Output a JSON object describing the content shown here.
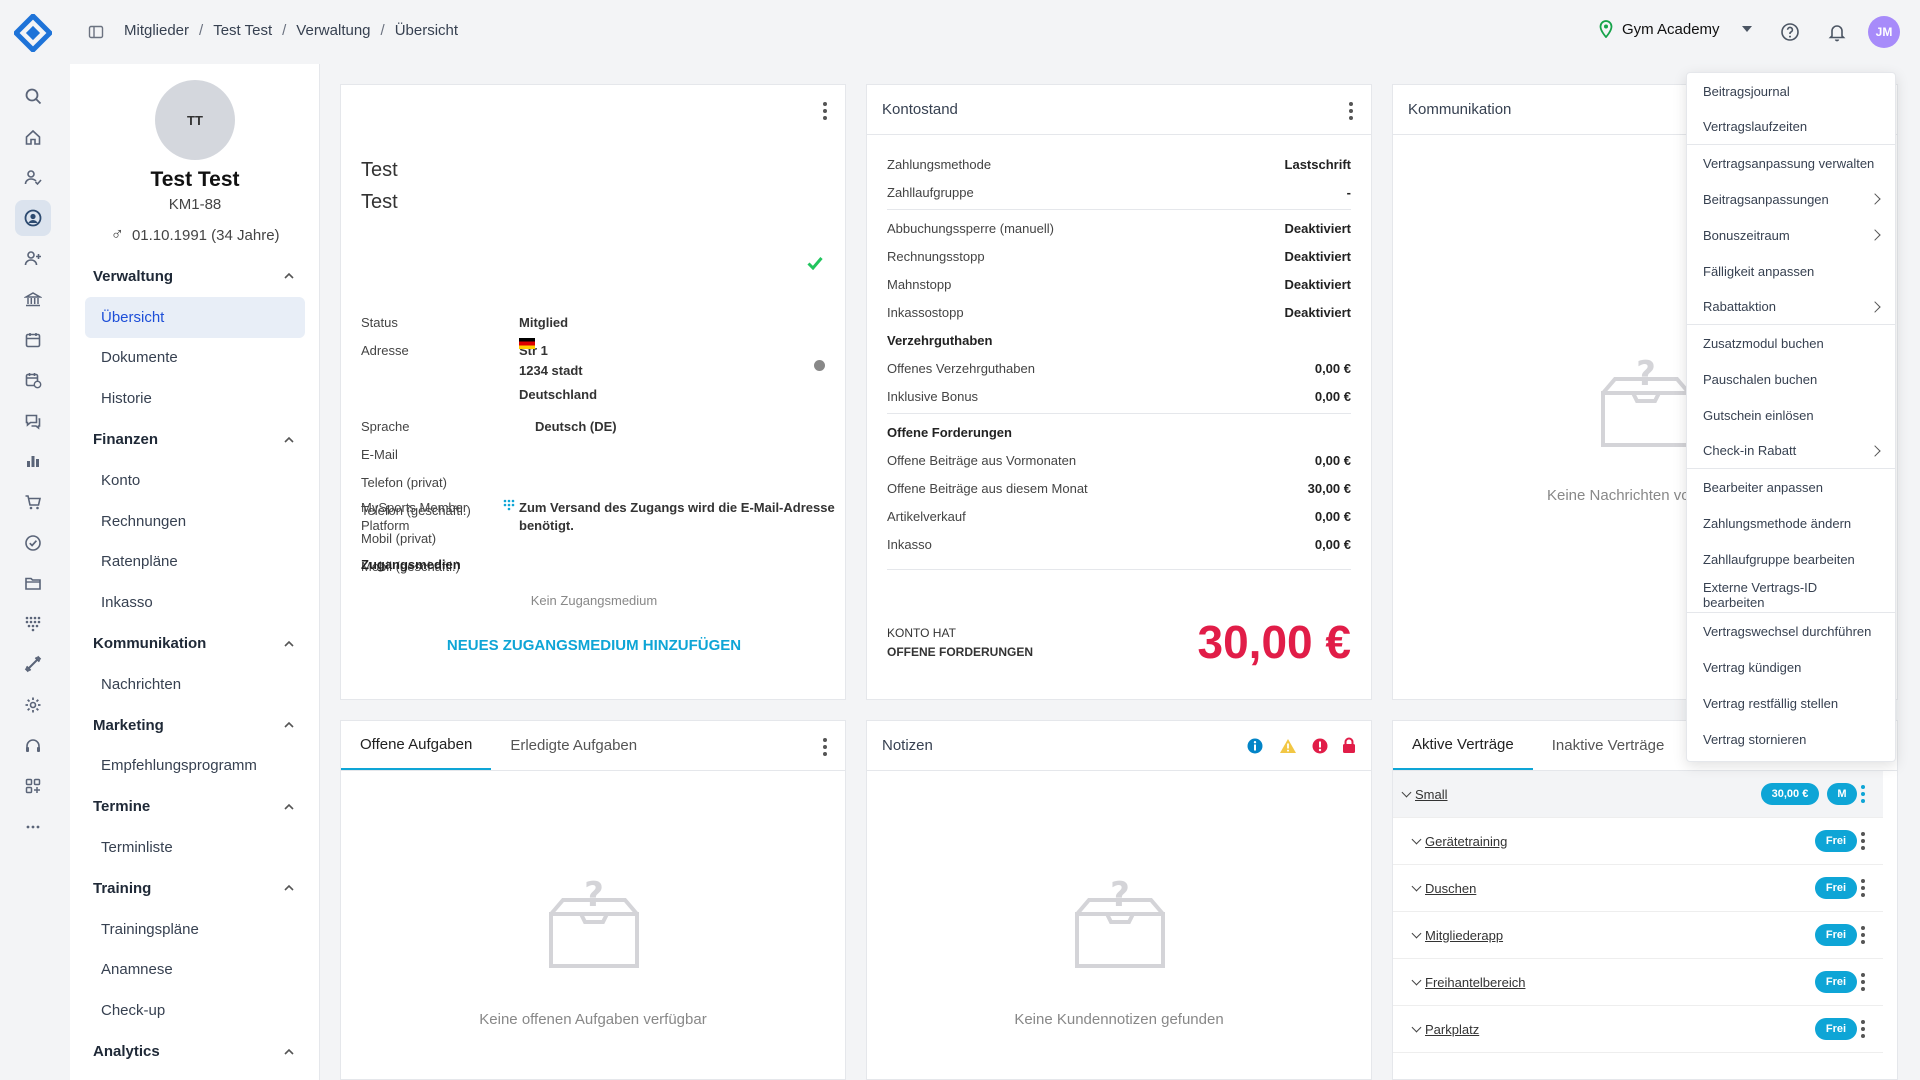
{
  "topbar": {
    "crumbs": [
      "Mitglieder",
      "Test Test",
      "Verwaltung",
      "Übersicht"
    ],
    "gym": "Gym Academy",
    "avatar": "JM"
  },
  "rail": [
    "search-icon",
    "home-icon",
    "user-check-icon",
    "user-circle-icon",
    "user-plus-icon",
    "bank-icon",
    "calendar-icon",
    "calendar-clock-icon",
    "chat-icon",
    "bar-chart-icon",
    "cart-icon",
    "check-circle-icon",
    "folder-icon",
    "dots-grid-icon",
    "dumbbell-icon",
    "gear-icon",
    "headset-icon",
    "apps-icon",
    "more-icon"
  ],
  "profile": {
    "initials": "TT",
    "name": "Test Test",
    "id": "KM1-88",
    "dob": "01.10.1991 (34 Jahre)",
    "gender_symbol": "♂"
  },
  "nav": [
    {
      "section": "Verwaltung",
      "items": [
        "Übersicht",
        "Dokumente",
        "Historie"
      ]
    },
    {
      "section": "Finanzen",
      "items": [
        "Konto",
        "Rechnungen",
        "Ratenpläne",
        "Inkasso"
      ]
    },
    {
      "section": "Kommunikation",
      "items": [
        "Nachrichten"
      ]
    },
    {
      "section": "Marketing",
      "items": [
        "Empfehlungsprogramm"
      ]
    },
    {
      "section": "Termine",
      "items": [
        "Terminliste"
      ]
    },
    {
      "section": "Training",
      "items": [
        "Trainingspläne",
        "Anamnese",
        "Check-up"
      ]
    },
    {
      "section": "Analytics",
      "items": []
    }
  ],
  "member": {
    "first": "Test",
    "last": "Test",
    "rows": [
      {
        "label": "Status",
        "value": "Mitglied"
      },
      {
        "label": "Adresse",
        "value": "Str 1"
      },
      {
        "label": "",
        "value": "1234 stadt"
      },
      {
        "label": "",
        "value": "Deutschland"
      },
      {
        "label": "Sprache",
        "value": "Deutsch (DE)"
      },
      {
        "label": "E-Mail",
        "value": ""
      },
      {
        "label": "Telefon (privat)",
        "value": ""
      },
      {
        "label": "Telefon (geschäftl.)",
        "value": ""
      },
      {
        "label": "Mobil (privat)",
        "value": ""
      },
      {
        "label": "Mobil (geschäftl.)",
        "value": ""
      }
    ],
    "platform_label_1": "MySports Member",
    "platform_label_2": "Platform",
    "platform_value_1": "Zum Versand des Zugangs wird die E-Mail-Adresse",
    "platform_value_2": "benötigt.",
    "media_title": "Zugangsmedien",
    "media_empty": "Kein Zugangsmedium",
    "media_add": "NEUES ZUGANGSMEDIUM HINZUFÜGEN"
  },
  "account": {
    "title": "Kontostand",
    "rows": [
      {
        "k": "Zahlungsmethode",
        "v": "Lastschrift"
      },
      {
        "k": "Zahllaufgruppe",
        "v": "-"
      },
      {
        "k": "Abbuchungssperre (manuell)",
        "v": "Deaktiviert"
      },
      {
        "k": "Rechnungsstopp",
        "v": "Deaktiviert"
      },
      {
        "k": "Mahnstopp",
        "v": "Deaktiviert"
      },
      {
        "k": "Inkassostopp",
        "v": "Deaktiviert"
      },
      {
        "k": "Verzehrguthaben",
        "v": ""
      },
      {
        "k": "Offenes Verzehrguthaben",
        "v": "0,00 €"
      },
      {
        "k": "Inklusive Bonus",
        "v": "0,00 €"
      },
      {
        "k": "Offene Forderungen",
        "v": ""
      },
      {
        "k": "Offene Beiträge aus Vormonaten",
        "v": "0,00 €"
      },
      {
        "k": "Offene Beiträge aus diesem Monat",
        "v": "30,00 €"
      },
      {
        "k": "Artikelverkauf",
        "v": "0,00 €"
      },
      {
        "k": "Inkasso",
        "v": "0,00 €"
      }
    ],
    "footer_1": "KONTO HAT",
    "footer_2": "OFFENE FORDERUNGEN",
    "total": "30,00 €",
    "total_color": "#e11d48"
  },
  "comm": {
    "title": "Kommunikation",
    "empty": "Keine Nachrichten vo"
  },
  "tasks": {
    "tab1": "Offene Aufgaben",
    "tab2": "Erledigte Aufgaben",
    "empty": "Keine offenen Aufgaben verfügbar"
  },
  "notes": {
    "title": "Notizen",
    "empty": "Keine Kundennotizen gefunden"
  },
  "contracts": {
    "tab1": "Aktive Verträge",
    "tab2": "Inaktive Verträge",
    "main": "Small",
    "price": "30,00 €",
    "badge": "M",
    "modules": [
      {
        "name": "Gerätetraining",
        "badge": "Frei"
      },
      {
        "name": "Duschen",
        "badge": "Frei"
      },
      {
        "name": "Mitgliederapp",
        "badge": "Frei"
      },
      {
        "name": "Freihantelbereich",
        "badge": "Frei"
      },
      {
        "name": "Parkplatz",
        "badge": "Frei"
      }
    ]
  },
  "menu": [
    {
      "label": "Beitragsjournal",
      "sub": false,
      "div": false
    },
    {
      "label": "Vertragslaufzeiten",
      "sub": false,
      "div": true
    },
    {
      "label": "Vertragsanpassung verwalten",
      "sub": false,
      "div": false
    },
    {
      "label": "Beitragsanpassungen",
      "sub": true,
      "div": false
    },
    {
      "label": "Bonuszeitraum",
      "sub": true,
      "div": false
    },
    {
      "label": "Fälligkeit anpassen",
      "sub": false,
      "div": false
    },
    {
      "label": "Rabattaktion",
      "sub": true,
      "div": true
    },
    {
      "label": "Zusatzmodul buchen",
      "sub": false,
      "div": false
    },
    {
      "label": "Pauschalen buchen",
      "sub": false,
      "div": false
    },
    {
      "label": "Gutschein einlösen",
      "sub": false,
      "div": false
    },
    {
      "label": "Check-in Rabatt",
      "sub": true,
      "div": true
    },
    {
      "label": "Bearbeiter anpassen",
      "sub": false,
      "div": false
    },
    {
      "label": "Zahlungsmethode ändern",
      "sub": false,
      "div": false
    },
    {
      "label": "Zahllaufgruppe bearbeiten",
      "sub": false,
      "div": false
    },
    {
      "label": "Externe Vertrags-ID bearbeiten",
      "sub": false,
      "div": true
    },
    {
      "label": "Vertragswechsel durchführen",
      "sub": false,
      "div": false
    },
    {
      "label": "Vertrag kündigen",
      "sub": false,
      "div": false
    },
    {
      "label": "Vertrag restfällig stellen",
      "sub": false,
      "div": false
    },
    {
      "label": "Vertrag stornieren",
      "sub": false,
      "div": false
    }
  ]
}
